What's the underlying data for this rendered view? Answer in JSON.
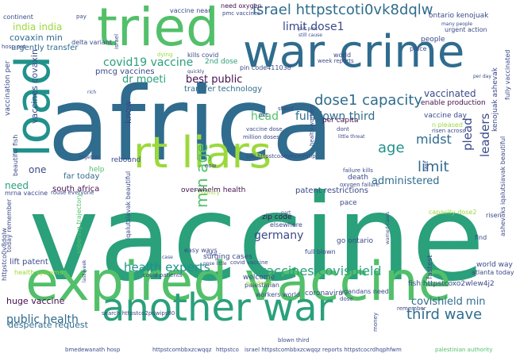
{
  "palette": {
    "dark_purple": "#44104f",
    "indigo": "#3b4a8a",
    "steel_blue": "#2f6c8e",
    "teal": "#21918c",
    "sea_green": "#2aa07b",
    "green": "#52c06a",
    "light_green": "#9bd93b",
    "yellow_green": "#c8e020"
  },
  "words": {
    "africa": "africa",
    "vaccine": "vaccine",
    "expired_vaccine": "expired vaccine",
    "war_crime": "war crime",
    "tried": "tried",
    "another_war": "another war",
    "rt_liars": "rt liars",
    "load": "load",
    "israel_link": "israel httpstcoti0vk8dqlw",
    "limit_dose1": "limit dose1",
    "dose1_capacity": "dose1 capacity",
    "fullblown_third": "fullblown third",
    "covid19_vaccine": "covid19 vaccine",
    "vaccines_covishield": "vaccines covishield",
    "health_experts": "health experts",
    "third_wave": "third wave",
    "public_health": "public health",
    "covishield_min": "covishield min",
    "germany": "germany",
    "min_age": "min age",
    "age": "age",
    "limit": "limit",
    "midst": "midst",
    "plead": "plead",
    "leaders": "leaders",
    "head": "head",
    "vaccinated": "vaccinated",
    "administered": "administered",
    "india_india": "india india",
    "covaxin_min": "covaxin min",
    "urgently_transfer": "urgently transfer",
    "vaccines_covaxin": "vaccines covaxin",
    "dr_moeti": "dr moeti",
    "best_public": "best public",
    "pmcg_vaccines": "pmcg vaccines",
    "transfer_technology": "transfer technology",
    "need": "need",
    "one": "one",
    "huge_vaccine": "huge vaccine",
    "desperate_request": "desperate request",
    "lift_patent": "lift patent",
    "south_africa": "south africa",
    "surging_cases": "surging cases",
    "zip_code": "zip code",
    "patent_restrictions": "patent restrictions",
    "overwhelm_health": "overwhelm health",
    "fish_link": "fish httpstcoxo2wlew4j2",
    "ashevaks_link": "ashevaks iqalutsiavak beautiful",
    "far_today": "far today",
    "iqalutsiavak_beautiful": "iqalutsiavak beautiful",
    "enable_production": "enable production",
    "per_capita": "per capita",
    "know": "know",
    "nd_dose": "2nd dose",
    "kenojuak_ashevak": "kenojuak ashevak",
    "vaccine_day": "vaccine day",
    "world_way": "world way",
    "atlanta_today": "atlanta today",
    "fastest": "fastest",
    "go_ontario": "go ontario",
    "welcome": "welcome",
    "palestinian": "palestinian",
    "coronaviru": "coronaviru",
    "workers_world": "workers world",
    "ugandans_need": "ugandans need",
    "easy_ways": "easy ways",
    "full_blown": "full blown",
    "pace": "pace",
    "death": "death",
    "elsewhere": "elsewhere",
    "rebound": "rebound",
    "help": "help",
    "people": "people",
    "urgent_action": "urgent action",
    "kills_covid": "kills covid",
    "ontario_kenojuak": "ontario kenojuak",
    "continent": "continent",
    "pay": "pay",
    "need_oxygen": "need oxygen",
    "pmc_vaccines": "pmc vaccines",
    "vaccine_near": "vaccine near",
    "delta_variant": "delta variant",
    "hosp_pvt": "hosp pvt",
    "vaccination_per": "vaccination per",
    "beautiful_fish": "beautiful fish",
    "today_remember": "today remember",
    "mrna_vaccine": "mrna vaccine",
    "rouse_everyone": "rouse everyone",
    "httpstco_left": "httpstco0v8dqlw",
    "health_systems": "health systems",
    "sobering_trajectory": "sobering trajectory",
    "search_link": "search httpstco2pdwips80",
    "israel_link2": "israel httpstcombbxzcwqqz reports httpstcocrdhqphfwm",
    "palestinian_authority": "palestinian authority",
    "capacity_dose2": "capacity dose2",
    "fully_vaccinated": "fully vaccinated",
    "risen": "risen",
    "find": "find",
    "world": "world",
    "place": "place",
    "pin_code": "pin code411038",
    "week_reports": "week reports",
    "dont": "dont",
    "stand": "stand",
    "put": "put",
    "million_doses": "million doses",
    "vaccine_dose": "vaccine dose",
    "call_link": "call httpstcoammcmmtip",
    "failure_kills": "failure kills",
    "oxygen_failure": "oxygen failure",
    "little_threat": "little threat",
    "health_workers": "health workers",
    "now": "now",
    "fast": "fast",
    "n_pleased": "n pleased",
    "risen_across": "risen across",
    "covid_vaccine": "covid vaccine",
    "covid_patients": "covid patients",
    "pandemic": "pandemic",
    "quickly": "quickly",
    "total": "total",
    "case": "case",
    "part": "part",
    "country": "country",
    "bandewanah_hosp": "bmedewanath hosp",
    "httpstco": "httpstco",
    "httpstcombbxzcwqqz": "httpstcombbxzcwqqz",
    "blown_third": "blown third",
    "money": "money",
    "dose": "dose",
    "remember": "remember",
    "pvt_pmc": "pvt pmc",
    "still_cause": "still cause",
    "many_people": "many people",
    "pose_little": "pose little",
    "israel_small": "israel",
    "dying": "dying",
    "rich": "rich",
    "together": "together",
    "last_week": "last week",
    "per_day": "per day",
    "warned_cases": "warned cases"
  }
}
